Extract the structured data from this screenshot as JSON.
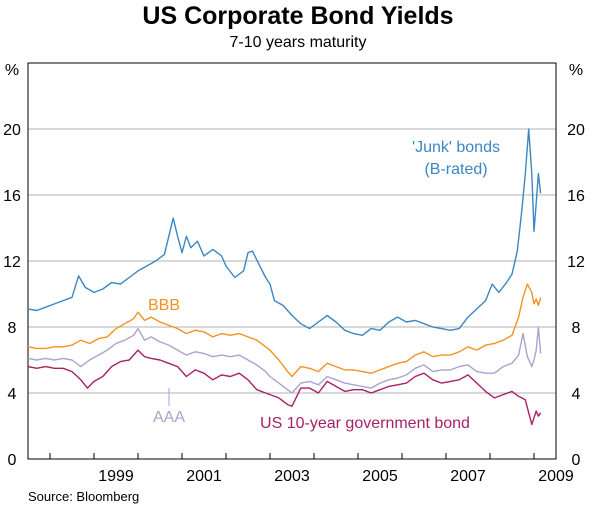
{
  "chart_data": {
    "type": "line",
    "title": "US Corporate Bond Yields",
    "subtitle": "7-10 years maturity",
    "source": "Source: Bloomberg",
    "unit_left": "%",
    "unit_right": "%",
    "ylim": [
      0,
      24
    ],
    "yticks": [
      "0",
      "4",
      "8",
      "12",
      "16",
      "20"
    ],
    "xlim": [
      1997.5,
      2009.5
    ],
    "xticks": [
      "1999",
      "2001",
      "2003",
      "2005",
      "2007",
      "2009"
    ],
    "grid": true,
    "series": [
      {
        "key": "junk",
        "name": "'Junk' bonds",
        "sublabel": "(B-rated)",
        "color": "#3b87c4",
        "points": [
          [
            1997.5,
            9.1
          ],
          [
            1997.7,
            9.0
          ],
          [
            1997.9,
            9.2
          ],
          [
            1998.1,
            9.4
          ],
          [
            1998.3,
            9.6
          ],
          [
            1998.5,
            9.8
          ],
          [
            1998.65,
            11.1
          ],
          [
            1998.8,
            10.4
          ],
          [
            1999.0,
            10.1
          ],
          [
            1999.2,
            10.3
          ],
          [
            1999.4,
            10.7
          ],
          [
            1999.6,
            10.6
          ],
          [
            1999.8,
            11.0
          ],
          [
            2000.0,
            11.4
          ],
          [
            2000.2,
            11.7
          ],
          [
            2000.4,
            12.0
          ],
          [
            2000.6,
            12.4
          ],
          [
            2000.7,
            13.5
          ],
          [
            2000.8,
            14.6
          ],
          [
            2000.9,
            13.5
          ],
          [
            2001.0,
            12.5
          ],
          [
            2001.1,
            13.5
          ],
          [
            2001.2,
            12.8
          ],
          [
            2001.35,
            13.2
          ],
          [
            2001.5,
            12.3
          ],
          [
            2001.7,
            12.7
          ],
          [
            2001.9,
            12.3
          ],
          [
            2002.0,
            11.7
          ],
          [
            2002.2,
            11.0
          ],
          [
            2002.4,
            11.4
          ],
          [
            2002.5,
            12.5
          ],
          [
            2002.6,
            12.6
          ],
          [
            2002.75,
            11.8
          ],
          [
            2002.9,
            11.0
          ],
          [
            2003.0,
            10.6
          ],
          [
            2003.1,
            9.6
          ],
          [
            2003.3,
            9.3
          ],
          [
            2003.5,
            8.7
          ],
          [
            2003.7,
            8.2
          ],
          [
            2003.9,
            7.9
          ],
          [
            2004.1,
            8.3
          ],
          [
            2004.3,
            8.7
          ],
          [
            2004.5,
            8.3
          ],
          [
            2004.7,
            7.8
          ],
          [
            2004.9,
            7.6
          ],
          [
            2005.1,
            7.5
          ],
          [
            2005.3,
            7.9
          ],
          [
            2005.5,
            7.8
          ],
          [
            2005.7,
            8.3
          ],
          [
            2005.9,
            8.6
          ],
          [
            2006.1,
            8.3
          ],
          [
            2006.3,
            8.4
          ],
          [
            2006.5,
            8.2
          ],
          [
            2006.7,
            8.0
          ],
          [
            2006.9,
            7.9
          ],
          [
            2007.1,
            7.8
          ],
          [
            2007.3,
            7.9
          ],
          [
            2007.5,
            8.6
          ],
          [
            2007.7,
            9.1
          ],
          [
            2007.9,
            9.6
          ],
          [
            2008.05,
            10.6
          ],
          [
            2008.2,
            10.1
          ],
          [
            2008.35,
            10.6
          ],
          [
            2008.5,
            11.2
          ],
          [
            2008.62,
            12.6
          ],
          [
            2008.72,
            15.0
          ],
          [
            2008.8,
            17.2
          ],
          [
            2008.88,
            20.0
          ],
          [
            2008.95,
            17.3
          ],
          [
            2009.0,
            13.8
          ],
          [
            2009.05,
            15.5
          ],
          [
            2009.1,
            17.3
          ],
          [
            2009.15,
            16.1
          ]
        ]
      },
      {
        "key": "bbb",
        "name": "BBB",
        "color": "#f29222",
        "points": [
          [
            1997.5,
            6.8
          ],
          [
            1997.7,
            6.7
          ],
          [
            1997.9,
            6.7
          ],
          [
            1998.1,
            6.8
          ],
          [
            1998.3,
            6.8
          ],
          [
            1998.5,
            6.9
          ],
          [
            1998.7,
            7.2
          ],
          [
            1998.9,
            7.0
          ],
          [
            1999.1,
            7.3
          ],
          [
            1999.3,
            7.4
          ],
          [
            1999.5,
            7.9
          ],
          [
            1999.7,
            8.2
          ],
          [
            1999.9,
            8.5
          ],
          [
            2000.0,
            8.9
          ],
          [
            2000.15,
            8.4
          ],
          [
            2000.3,
            8.6
          ],
          [
            2000.5,
            8.3
          ],
          [
            2000.7,
            8.1
          ],
          [
            2000.9,
            7.9
          ],
          [
            2001.1,
            7.6
          ],
          [
            2001.3,
            7.8
          ],
          [
            2001.5,
            7.7
          ],
          [
            2001.7,
            7.4
          ],
          [
            2001.9,
            7.6
          ],
          [
            2002.1,
            7.5
          ],
          [
            2002.3,
            7.6
          ],
          [
            2002.5,
            7.4
          ],
          [
            2002.7,
            7.2
          ],
          [
            2002.9,
            6.8
          ],
          [
            2003.0,
            6.6
          ],
          [
            2003.2,
            6.0
          ],
          [
            2003.4,
            5.3
          ],
          [
            2003.5,
            5.0
          ],
          [
            2003.7,
            5.6
          ],
          [
            2003.9,
            5.5
          ],
          [
            2004.1,
            5.3
          ],
          [
            2004.3,
            5.8
          ],
          [
            2004.5,
            5.6
          ],
          [
            2004.7,
            5.4
          ],
          [
            2004.9,
            5.4
          ],
          [
            2005.1,
            5.3
          ],
          [
            2005.3,
            5.2
          ],
          [
            2005.5,
            5.4
          ],
          [
            2005.7,
            5.6
          ],
          [
            2005.9,
            5.8
          ],
          [
            2006.1,
            5.9
          ],
          [
            2006.3,
            6.3
          ],
          [
            2006.5,
            6.5
          ],
          [
            2006.7,
            6.2
          ],
          [
            2006.9,
            6.3
          ],
          [
            2007.1,
            6.3
          ],
          [
            2007.3,
            6.5
          ],
          [
            2007.5,
            6.8
          ],
          [
            2007.7,
            6.6
          ],
          [
            2007.9,
            6.9
          ],
          [
            2008.1,
            7.0
          ],
          [
            2008.3,
            7.2
          ],
          [
            2008.5,
            7.5
          ],
          [
            2008.65,
            8.6
          ],
          [
            2008.75,
            9.8
          ],
          [
            2008.85,
            10.6
          ],
          [
            2008.95,
            10.1
          ],
          [
            2009.0,
            9.4
          ],
          [
            2009.05,
            9.7
          ],
          [
            2009.1,
            9.3
          ],
          [
            2009.15,
            9.8
          ]
        ]
      },
      {
        "key": "aaa",
        "name": "AAA",
        "color": "#a9a3d0",
        "points": [
          [
            1997.5,
            6.1
          ],
          [
            1997.7,
            6.0
          ],
          [
            1997.9,
            6.1
          ],
          [
            1998.1,
            6.0
          ],
          [
            1998.3,
            6.1
          ],
          [
            1998.5,
            6.0
          ],
          [
            1998.7,
            5.6
          ],
          [
            1998.9,
            6.0
          ],
          [
            1999.1,
            6.3
          ],
          [
            1999.3,
            6.6
          ],
          [
            1999.5,
            7.0
          ],
          [
            1999.7,
            7.2
          ],
          [
            1999.9,
            7.5
          ],
          [
            2000.0,
            7.9
          ],
          [
            2000.15,
            7.2
          ],
          [
            2000.3,
            7.4
          ],
          [
            2000.5,
            7.1
          ],
          [
            2000.7,
            6.9
          ],
          [
            2000.9,
            6.6
          ],
          [
            2001.1,
            6.3
          ],
          [
            2001.3,
            6.5
          ],
          [
            2001.5,
            6.4
          ],
          [
            2001.7,
            6.2
          ],
          [
            2001.9,
            6.3
          ],
          [
            2002.1,
            6.2
          ],
          [
            2002.3,
            6.3
          ],
          [
            2002.5,
            6.0
          ],
          [
            2002.7,
            5.7
          ],
          [
            2002.9,
            5.3
          ],
          [
            2003.0,
            5.0
          ],
          [
            2003.2,
            4.6
          ],
          [
            2003.4,
            4.2
          ],
          [
            2003.5,
            4.0
          ],
          [
            2003.7,
            4.6
          ],
          [
            2003.9,
            4.7
          ],
          [
            2004.1,
            4.5
          ],
          [
            2004.3,
            5.0
          ],
          [
            2004.5,
            4.8
          ],
          [
            2004.7,
            4.6
          ],
          [
            2004.9,
            4.5
          ],
          [
            2005.1,
            4.4
          ],
          [
            2005.3,
            4.3
          ],
          [
            2005.5,
            4.6
          ],
          [
            2005.7,
            4.8
          ],
          [
            2005.9,
            4.9
          ],
          [
            2006.1,
            5.1
          ],
          [
            2006.3,
            5.5
          ],
          [
            2006.5,
            5.7
          ],
          [
            2006.7,
            5.3
          ],
          [
            2006.9,
            5.4
          ],
          [
            2007.1,
            5.4
          ],
          [
            2007.3,
            5.6
          ],
          [
            2007.5,
            5.7
          ],
          [
            2007.7,
            5.3
          ],
          [
            2007.9,
            5.2
          ],
          [
            2008.1,
            5.2
          ],
          [
            2008.3,
            5.6
          ],
          [
            2008.5,
            5.8
          ],
          [
            2008.65,
            6.3
          ],
          [
            2008.75,
            7.6
          ],
          [
            2008.85,
            6.2
          ],
          [
            2008.95,
            5.6
          ],
          [
            2009.0,
            6.0
          ],
          [
            2009.05,
            6.6
          ],
          [
            2009.1,
            8.0
          ],
          [
            2009.15,
            6.4
          ]
        ]
      },
      {
        "key": "govt",
        "name": "US 10-year government bond",
        "color": "#a82166",
        "points": [
          [
            1997.5,
            5.6
          ],
          [
            1997.7,
            5.5
          ],
          [
            1997.9,
            5.6
          ],
          [
            1998.1,
            5.5
          ],
          [
            1998.3,
            5.5
          ],
          [
            1998.5,
            5.3
          ],
          [
            1998.7,
            4.8
          ],
          [
            1998.85,
            4.3
          ],
          [
            1999.0,
            4.7
          ],
          [
            1999.2,
            5.0
          ],
          [
            1999.4,
            5.6
          ],
          [
            1999.6,
            5.9
          ],
          [
            1999.8,
            6.0
          ],
          [
            2000.0,
            6.6
          ],
          [
            2000.15,
            6.2
          ],
          [
            2000.3,
            6.1
          ],
          [
            2000.5,
            6.0
          ],
          [
            2000.7,
            5.8
          ],
          [
            2000.9,
            5.6
          ],
          [
            2001.1,
            5.0
          ],
          [
            2001.3,
            5.4
          ],
          [
            2001.5,
            5.2
          ],
          [
            2001.7,
            4.8
          ],
          [
            2001.9,
            5.1
          ],
          [
            2002.1,
            5.0
          ],
          [
            2002.3,
            5.2
          ],
          [
            2002.5,
            4.8
          ],
          [
            2002.7,
            4.2
          ],
          [
            2002.9,
            4.0
          ],
          [
            2003.0,
            3.9
          ],
          [
            2003.2,
            3.7
          ],
          [
            2003.4,
            3.3
          ],
          [
            2003.5,
            3.2
          ],
          [
            2003.7,
            4.3
          ],
          [
            2003.9,
            4.3
          ],
          [
            2004.1,
            4.0
          ],
          [
            2004.3,
            4.7
          ],
          [
            2004.5,
            4.4
          ],
          [
            2004.7,
            4.1
          ],
          [
            2004.9,
            4.2
          ],
          [
            2005.1,
            4.2
          ],
          [
            2005.3,
            4.0
          ],
          [
            2005.5,
            4.2
          ],
          [
            2005.7,
            4.4
          ],
          [
            2005.9,
            4.5
          ],
          [
            2006.1,
            4.6
          ],
          [
            2006.3,
            5.0
          ],
          [
            2006.5,
            5.2
          ],
          [
            2006.7,
            4.8
          ],
          [
            2006.9,
            4.6
          ],
          [
            2007.1,
            4.7
          ],
          [
            2007.3,
            4.8
          ],
          [
            2007.5,
            5.1
          ],
          [
            2007.7,
            4.6
          ],
          [
            2007.9,
            4.1
          ],
          [
            2008.1,
            3.7
          ],
          [
            2008.3,
            3.9
          ],
          [
            2008.5,
            4.1
          ],
          [
            2008.65,
            3.8
          ],
          [
            2008.8,
            3.6
          ],
          [
            2008.9,
            2.6
          ],
          [
            2008.95,
            2.1
          ],
          [
            2009.0,
            2.5
          ],
          [
            2009.05,
            2.9
          ],
          [
            2009.1,
            2.6
          ],
          [
            2009.15,
            2.8
          ]
        ]
      }
    ]
  }
}
